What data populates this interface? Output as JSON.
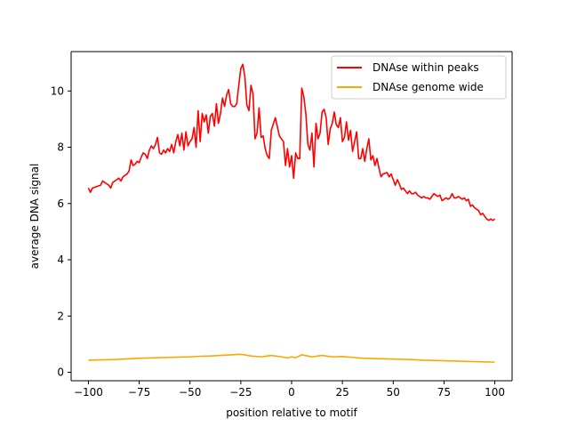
{
  "chart_data": {
    "type": "line",
    "xlabel": "position relative to motif",
    "ylabel": "average DNA signal",
    "xlim": [
      -108.5,
      108.5
    ],
    "ylim": [
      -0.3,
      11.4
    ],
    "xticks": [
      -100,
      -75,
      -50,
      -25,
      0,
      25,
      50,
      75,
      100
    ],
    "xtick_labels": [
      "−100",
      "−75",
      "−50",
      "−25",
      "0",
      "25",
      "50",
      "75",
      "100"
    ],
    "yticks": [
      0,
      2,
      4,
      6,
      8,
      10
    ],
    "ytick_labels": [
      "0",
      "2",
      "4",
      "6",
      "8",
      "10"
    ],
    "grid": false,
    "legend_position": "top-right",
    "series": [
      {
        "name": "DNAse within peaks",
        "color": "#ff0000",
        "points": [
          [
            -100,
            6.55
          ],
          [
            -99,
            6.4
          ],
          [
            -98,
            6.55
          ],
          [
            -96,
            6.6
          ],
          [
            -94,
            6.65
          ],
          [
            -93,
            6.8
          ],
          [
            -91,
            6.7
          ],
          [
            -90,
            6.65
          ],
          [
            -89,
            6.55
          ],
          [
            -88,
            6.75
          ],
          [
            -86,
            6.85
          ],
          [
            -85,
            6.9
          ],
          [
            -84,
            6.8
          ],
          [
            -83,
            6.95
          ],
          [
            -81,
            7.05
          ],
          [
            -80,
            7.15
          ],
          [
            -79,
            7.55
          ],
          [
            -78,
            7.35
          ],
          [
            -77,
            7.4
          ],
          [
            -76,
            7.5
          ],
          [
            -75,
            7.45
          ],
          [
            -74,
            7.65
          ],
          [
            -73,
            7.8
          ],
          [
            -72,
            7.75
          ],
          [
            -71,
            7.6
          ],
          [
            -70,
            7.9
          ],
          [
            -69,
            8.05
          ],
          [
            -68,
            7.95
          ],
          [
            -67,
            8.1
          ],
          [
            -66,
            8.35
          ],
          [
            -65,
            7.8
          ],
          [
            -64,
            7.75
          ],
          [
            -63,
            7.9
          ],
          [
            -62,
            7.8
          ],
          [
            -61,
            7.95
          ],
          [
            -60,
            7.85
          ],
          [
            -59,
            8.1
          ],
          [
            -58,
            7.8
          ],
          [
            -57,
            8.2
          ],
          [
            -56,
            8.45
          ],
          [
            -55,
            8.05
          ],
          [
            -54,
            8.5
          ],
          [
            -53,
            7.9
          ],
          [
            -52,
            8.55
          ],
          [
            -51,
            8.05
          ],
          [
            -50,
            8.2
          ],
          [
            -49,
            8.3
          ],
          [
            -48,
            8.7
          ],
          [
            -47,
            8.0
          ],
          [
            -46,
            9.3
          ],
          [
            -45,
            8.2
          ],
          [
            -44,
            9.2
          ],
          [
            -43,
            8.9
          ],
          [
            -42,
            9.15
          ],
          [
            -41,
            8.5
          ],
          [
            -40,
            9.1
          ],
          [
            -39,
            9.2
          ],
          [
            -38,
            8.75
          ],
          [
            -37,
            9.55
          ],
          [
            -36,
            8.85
          ],
          [
            -35,
            9.2
          ],
          [
            -34,
            9.75
          ],
          [
            -33,
            9.45
          ],
          [
            -32,
            9.85
          ],
          [
            -31,
            10.05
          ],
          [
            -30,
            9.55
          ],
          [
            -29,
            9.45
          ],
          [
            -28,
            9.45
          ],
          [
            -27,
            9.55
          ],
          [
            -26,
            10.2
          ],
          [
            -25,
            10.8
          ],
          [
            -24,
            10.95
          ],
          [
            -23,
            10.5
          ],
          [
            -22,
            9.5
          ],
          [
            -21,
            9.3
          ],
          [
            -20,
            10.2
          ],
          [
            -19,
            9.9
          ],
          [
            -18,
            8.3
          ],
          [
            -17,
            8.5
          ],
          [
            -16,
            9.4
          ],
          [
            -15,
            8.35
          ],
          [
            -14,
            8.4
          ],
          [
            -13,
            7.95
          ],
          [
            -12,
            7.7
          ],
          [
            -11,
            7.6
          ],
          [
            -10,
            8.6
          ],
          [
            -8,
            9.05
          ],
          [
            -6,
            8.4
          ],
          [
            -4,
            8.2
          ],
          [
            -3,
            7.35
          ],
          [
            -2,
            7.95
          ],
          [
            -1,
            7.3
          ],
          [
            0,
            7.7
          ],
          [
            1,
            6.9
          ],
          [
            2,
            7.8
          ],
          [
            3,
            7.6
          ],
          [
            4,
            7.6
          ],
          [
            5,
            10.1
          ],
          [
            6,
            9.8
          ],
          [
            7,
            9.2
          ],
          [
            8,
            8.1
          ],
          [
            9,
            7.9
          ],
          [
            10,
            8.5
          ],
          [
            11,
            7.3
          ],
          [
            12,
            8.85
          ],
          [
            13,
            8.3
          ],
          [
            14,
            8.5
          ],
          [
            15,
            9.25
          ],
          [
            16,
            9.35
          ],
          [
            17,
            9.05
          ],
          [
            18,
            8.1
          ],
          [
            19,
            8.65
          ],
          [
            20,
            8.85
          ],
          [
            21,
            9.25
          ],
          [
            22,
            8.8
          ],
          [
            23,
            8.7
          ],
          [
            24,
            9.05
          ],
          [
            25,
            8.2
          ],
          [
            26,
            8.35
          ],
          [
            27,
            8.9
          ],
          [
            28,
            8.25
          ],
          [
            29,
            8.6
          ],
          [
            30,
            7.85
          ],
          [
            31,
            8.2
          ],
          [
            32,
            8.55
          ],
          [
            33,
            7.6
          ],
          [
            34,
            7.6
          ],
          [
            35,
            7.95
          ],
          [
            36,
            7.5
          ],
          [
            37,
            7.95
          ],
          [
            38,
            8.3
          ],
          [
            39,
            7.55
          ],
          [
            40,
            7.7
          ],
          [
            41,
            7.35
          ],
          [
            42,
            7.6
          ],
          [
            43,
            7.25
          ],
          [
            44,
            6.95
          ],
          [
            45,
            7.05
          ],
          [
            47,
            7.1
          ],
          [
            48,
            6.95
          ],
          [
            49,
            7.05
          ],
          [
            50,
            6.85
          ],
          [
            51,
            6.65
          ],
          [
            52,
            6.85
          ],
          [
            53,
            6.7
          ],
          [
            54,
            6.5
          ],
          [
            55,
            6.55
          ],
          [
            56,
            6.45
          ],
          [
            57,
            6.35
          ],
          [
            58,
            6.45
          ],
          [
            59,
            6.35
          ],
          [
            60,
            6.35
          ],
          [
            61,
            6.4
          ],
          [
            62,
            6.3
          ],
          [
            63,
            6.25
          ],
          [
            64,
            6.2
          ],
          [
            65,
            6.25
          ],
          [
            66,
            6.2
          ],
          [
            67,
            6.2
          ],
          [
            68,
            6.15
          ],
          [
            69,
            6.25
          ],
          [
            70,
            6.35
          ],
          [
            71,
            6.3
          ],
          [
            72,
            6.25
          ],
          [
            73,
            6.3
          ],
          [
            74,
            6.1
          ],
          [
            75,
            6.15
          ],
          [
            76,
            6.2
          ],
          [
            77,
            6.15
          ],
          [
            78,
            6.2
          ],
          [
            79,
            6.35
          ],
          [
            80,
            6.2
          ],
          [
            81,
            6.2
          ],
          [
            82,
            6.25
          ],
          [
            83,
            6.2
          ],
          [
            84,
            6.15
          ],
          [
            85,
            6.2
          ],
          [
            86,
            6.1
          ],
          [
            87,
            6.15
          ],
          [
            88,
            5.9
          ],
          [
            89,
            5.95
          ],
          [
            90,
            5.85
          ],
          [
            91,
            5.8
          ],
          [
            92,
            5.75
          ],
          [
            93,
            5.6
          ],
          [
            94,
            5.65
          ],
          [
            95,
            5.55
          ],
          [
            96,
            5.45
          ],
          [
            97,
            5.4
          ],
          [
            98,
            5.45
          ],
          [
            99,
            5.4
          ],
          [
            100,
            5.45
          ]
        ]
      },
      {
        "name": "DNAse genome wide",
        "color": "#ffa500",
        "points": [
          [
            -100,
            0.43
          ],
          [
            -95,
            0.44
          ],
          [
            -90,
            0.45
          ],
          [
            -85,
            0.46
          ],
          [
            -80,
            0.48
          ],
          [
            -75,
            0.5
          ],
          [
            -70,
            0.51
          ],
          [
            -65,
            0.52
          ],
          [
            -60,
            0.53
          ],
          [
            -55,
            0.54
          ],
          [
            -50,
            0.55
          ],
          [
            -45,
            0.57
          ],
          [
            -40,
            0.58
          ],
          [
            -35,
            0.6
          ],
          [
            -30,
            0.62
          ],
          [
            -26,
            0.64
          ],
          [
            -24,
            0.63
          ],
          [
            -20,
            0.58
          ],
          [
            -15,
            0.55
          ],
          [
            -10,
            0.6
          ],
          [
            -5,
            0.55
          ],
          [
            -2,
            0.51
          ],
          [
            0,
            0.55
          ],
          [
            2,
            0.52
          ],
          [
            5,
            0.62
          ],
          [
            8,
            0.58
          ],
          [
            10,
            0.55
          ],
          [
            15,
            0.6
          ],
          [
            20,
            0.55
          ],
          [
            25,
            0.56
          ],
          [
            30,
            0.53
          ],
          [
            35,
            0.5
          ],
          [
            40,
            0.49
          ],
          [
            45,
            0.48
          ],
          [
            50,
            0.47
          ],
          [
            55,
            0.46
          ],
          [
            60,
            0.45
          ],
          [
            65,
            0.43
          ],
          [
            70,
            0.42
          ],
          [
            75,
            0.41
          ],
          [
            80,
            0.4
          ],
          [
            85,
            0.39
          ],
          [
            90,
            0.38
          ],
          [
            95,
            0.37
          ],
          [
            100,
            0.36
          ]
        ]
      }
    ]
  }
}
